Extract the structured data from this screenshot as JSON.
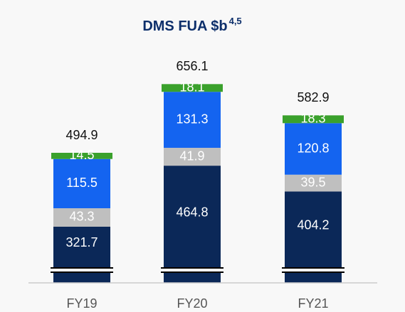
{
  "chart_data": {
    "type": "bar",
    "stacked": true,
    "title": "DMS FUA $b",
    "title_superscript": "4,5",
    "categories": [
      "FY19",
      "FY20",
      "FY21"
    ],
    "series": [
      {
        "color": "#0b2858",
        "label_color": "#ffffff",
        "values": [
          321.7,
          464.8,
          404.2
        ]
      },
      {
        "color": "#bfbfbf",
        "label_color": "#ffffff",
        "values": [
          43.3,
          41.9,
          39.5
        ]
      },
      {
        "color": "#1464f0",
        "label_color": "#ffffff",
        "values": [
          115.5,
          131.3,
          120.8
        ]
      },
      {
        "color": "#3aa12c",
        "label_color": "#ffffff",
        "values": [
          14.5,
          18.1,
          18.3
        ]
      }
    ],
    "totals": [
      494.9,
      656.1,
      582.9
    ],
    "ylim": [
      190,
      660
    ],
    "axis_break": true
  }
}
